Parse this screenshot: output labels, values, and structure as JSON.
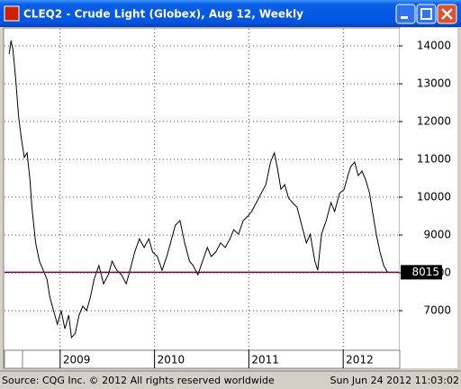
{
  "chart_data": {
    "type": "line",
    "title": "CLEQ2 - Crude Light (Globex), Aug 12, Weekly",
    "x": [
      2008.46,
      2008.48,
      2008.5,
      2008.53,
      2008.56,
      2008.59,
      2008.62,
      2008.65,
      2008.68,
      2008.7,
      2008.74,
      2008.78,
      2008.82,
      2008.86,
      2008.89,
      2008.93,
      2008.97,
      2009.01,
      2009.05,
      2009.09,
      2009.12,
      2009.16,
      2009.2,
      2009.24,
      2009.28,
      2009.32,
      2009.36,
      2009.41,
      2009.46,
      2009.51,
      2009.55,
      2009.6,
      2009.65,
      2009.7,
      2009.74,
      2009.79,
      2009.84,
      2009.89,
      2009.94,
      2009.98,
      2010.03,
      2010.08,
      2010.13,
      2010.17,
      2010.22,
      2010.27,
      2010.32,
      2010.37,
      2010.41,
      2010.46,
      2010.51,
      2010.56,
      2010.6,
      2010.65,
      2010.7,
      2010.75,
      2010.8,
      2010.84,
      2010.89,
      2010.94,
      2010.99,
      2011.03,
      2011.08,
      2011.13,
      2011.18,
      2011.23,
      2011.27,
      2011.3,
      2011.34,
      2011.38,
      2011.42,
      2011.46,
      2011.51,
      2011.56,
      2011.61,
      2011.65,
      2011.7,
      2011.73,
      2011.77,
      2011.82,
      2011.87,
      2011.91,
      2011.96,
      2012.01,
      2012.05,
      2012.08,
      2012.12,
      2012.16,
      2012.2,
      2012.24,
      2012.28,
      2012.31,
      2012.35,
      2012.39,
      2012.43,
      2012.47
    ],
    "values": [
      13790,
      14140,
      13900,
      13070,
      12120,
      11520,
      11050,
      11170,
      10450,
      9740,
      8790,
      8310,
      8070,
      7830,
      7360,
      7000,
      6640,
      7000,
      6520,
      6880,
      6290,
      6400,
      6880,
      7120,
      7000,
      7360,
      7830,
      8190,
      7710,
      7950,
      8310,
      8070,
      7950,
      7710,
      8070,
      8550,
      8900,
      8670,
      8900,
      8550,
      8430,
      8070,
      8430,
      8790,
      9260,
      9380,
      8790,
      8310,
      8190,
      7950,
      8310,
      8670,
      8430,
      8550,
      8790,
      8670,
      8900,
      9140,
      9020,
      9380,
      9500,
      9620,
      9860,
      10100,
      10330,
      10930,
      11170,
      10810,
      10210,
      10330,
      9980,
      9860,
      9740,
      9260,
      8790,
      9020,
      8310,
      8070,
      9020,
      9380,
      9860,
      9620,
      10100,
      10210,
      10570,
      10810,
      10930,
      10570,
      10690,
      10450,
      10100,
      9620,
      9020,
      8550,
      8190,
      8015
    ],
    "color": "#000000",
    "last_line_color": "#800040",
    "xlim": [
      2008.41,
      2012.59
    ],
    "xticks": [
      2009,
      2010,
      2011,
      2012
    ],
    "ylim": [
      5976,
      14452
    ],
    "yticks": [
      7000,
      8000,
      9000,
      10000,
      11000,
      12000,
      13000,
      14000
    ],
    "grid": true
  },
  "footer": {
    "source": "Source: CQG Inc. © 2012 All rights reserved worldwide",
    "timestamp": "Sun Jun 24 2012 11:03:02"
  }
}
